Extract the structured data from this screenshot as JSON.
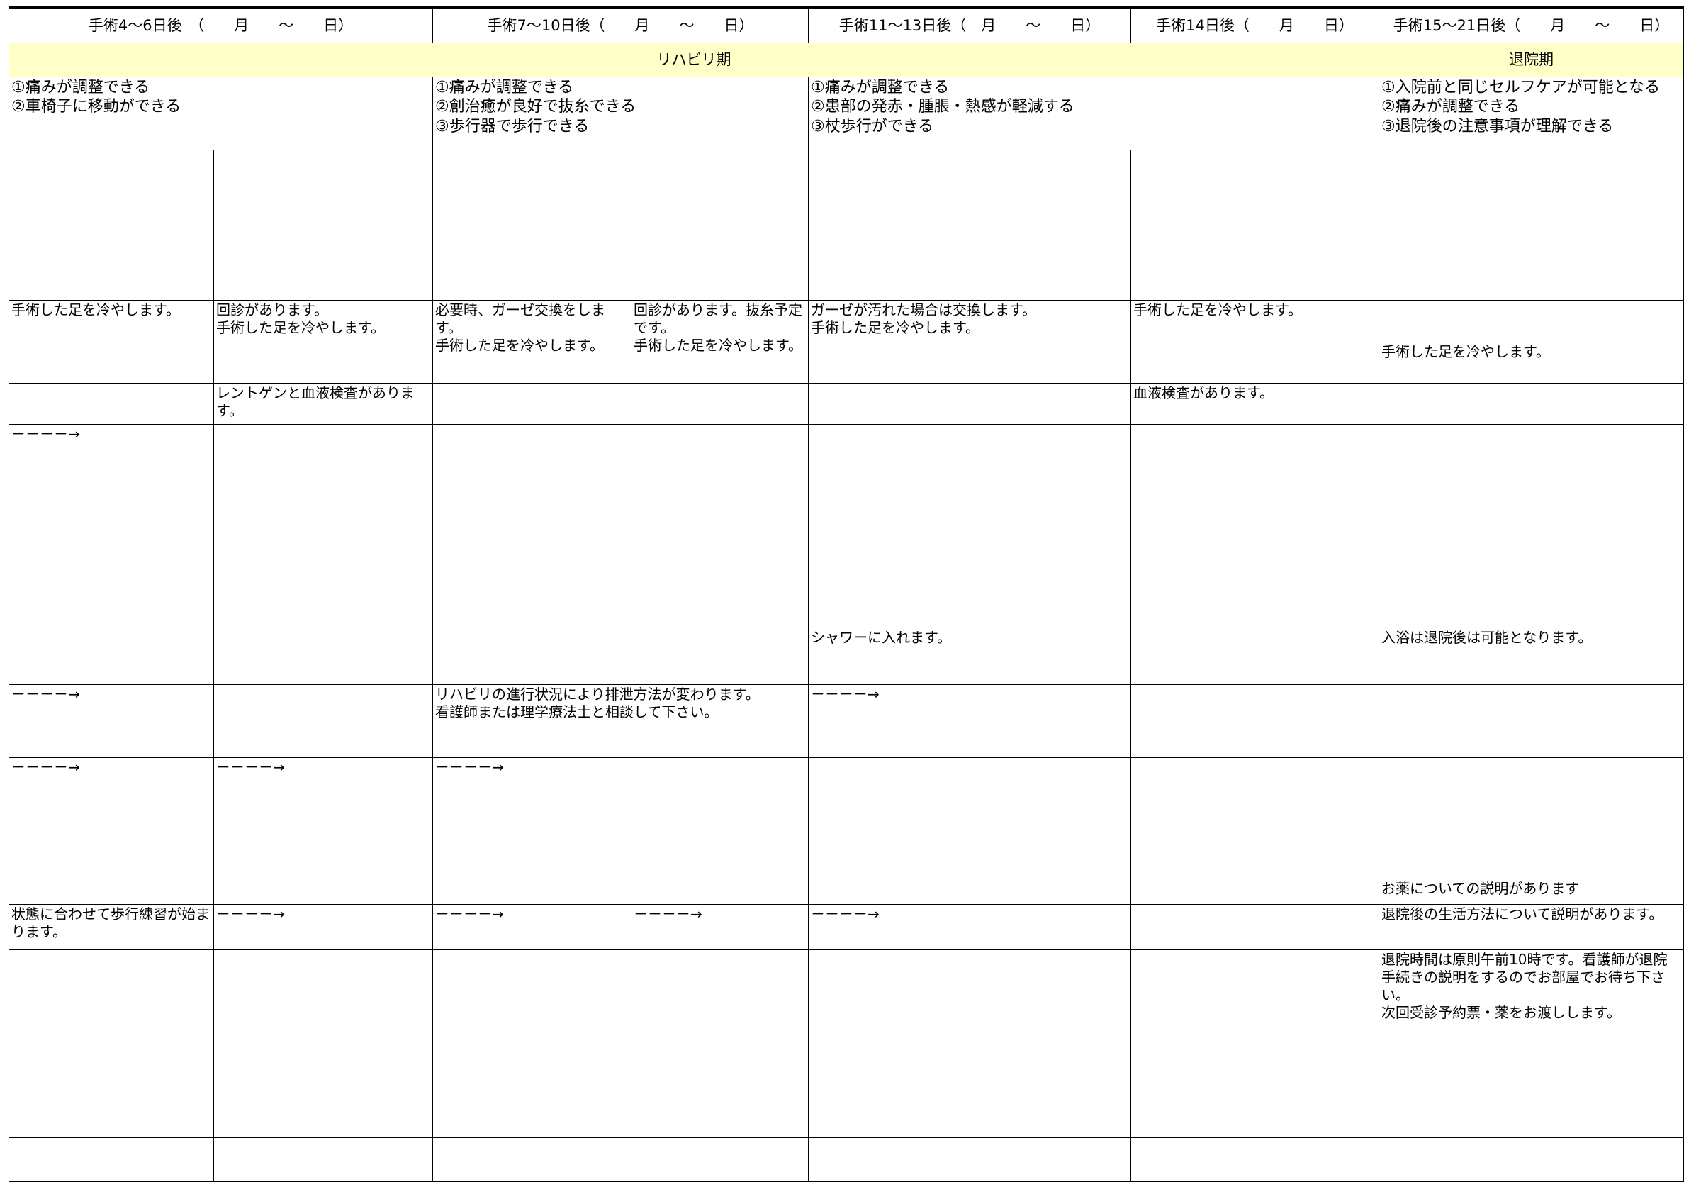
{
  "header": {
    "columns": [
      "手術4〜6日後　（　　月　　～　　日）",
      "手術7〜10日後（　　月　　～　　日）",
      "手術11〜13日後（　月　　～　　日）",
      "手術14日後（　　月　　日）",
      "手術15〜21日後（　　月　　～　　日）"
    ],
    "phases": [
      "リハビリ期",
      "退院期"
    ],
    "goals": [
      "①痛みが調整できる\n②車椅子に移動ができる",
      "①痛みが調整できる\n②創治癒が良好で抜糸できる\n③歩行器で歩行できる",
      "①痛みが調整できる\n②患部の発赤・腫脹・熱感が軽減する\n③杖歩行ができる",
      "①入院前と同じセルフケアが可能となる\n②痛みが調整できる\n③退院後の注意事項が理解できる"
    ]
  },
  "rows": [
    {
      "c1": "手術した足を冷やします。",
      "c2": "回診があります。\n手術した足を冷やします。",
      "c3": "必要時、ガーゼ交換をします。\n手術した足を冷やします。",
      "c4": "回診があります。抜糸予定です。\n手術した足を冷やします。",
      "c5": "ガーゼが汚れた場合は交換します。\n手術した足を冷やします。",
      "c6": "手術した足を冷やします。",
      "c7": "手術した足を冷やします。"
    },
    {
      "c2": "レントゲンと血液検査があります。",
      "c6": "血液検査があります。"
    },
    {
      "c1": "－－－－→"
    },
    {
      "c5": "シャワーに入れます。",
      "c7": "入浴は退院後は可能となります。"
    },
    {
      "c1": "－－－－→",
      "c3": "リハビリの進行状況により排泄方法が変わります。\n看護師または理学療法士と相談して下さい。",
      "c5": "－－－－→"
    },
    {
      "c1": "－－－－→",
      "c2": "－－－－→",
      "c3": "－－－－→"
    },
    {
      "c7": "お薬についての説明があります"
    },
    {
      "c1": "状態に合わせて歩行練習が始まります。",
      "c2": "－－－－→",
      "c3": "－－－－→",
      "c4": "－－－－→",
      "c5": "－－－－→",
      "c7": "退院後の生活方法について説明があります。"
    },
    {
      "c7": "退院時間は原則午前10時です。看護師が退院手続きの説明をするのでお部屋でお待ち下さい。\n次回受診予約票・薬をお渡しします。"
    }
  ]
}
